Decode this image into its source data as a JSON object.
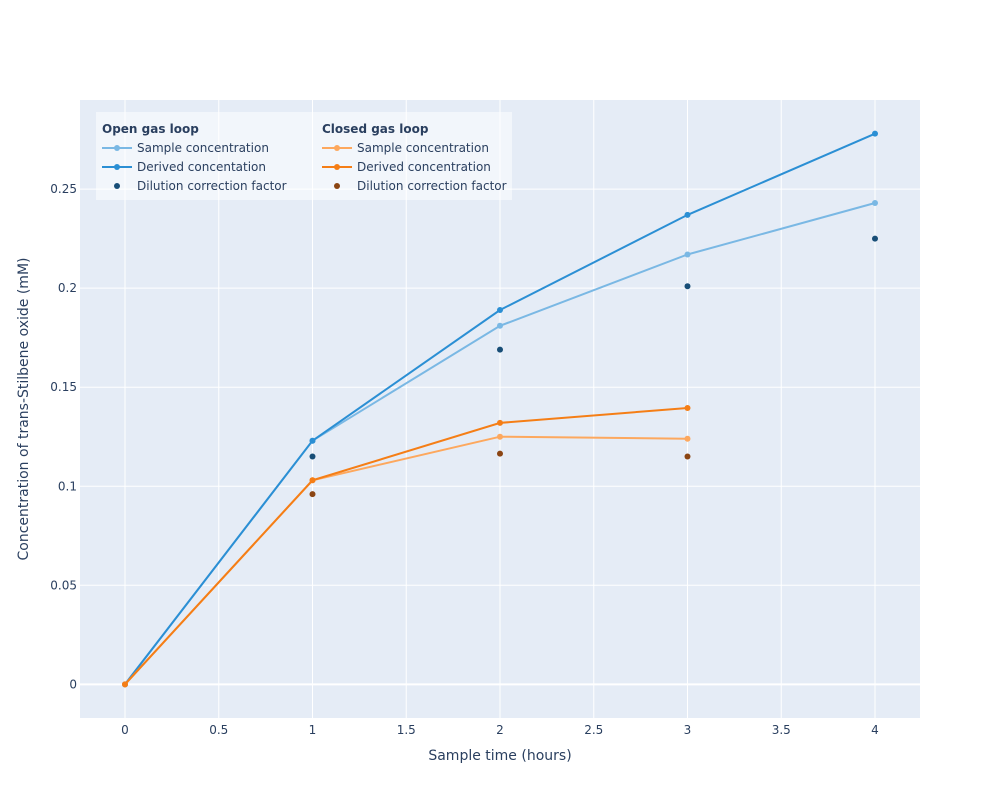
{
  "chart_data": {
    "type": "line",
    "xlabel": "Sample time (hours)",
    "ylabel": "Concentration of trans-Stilbene oxide (mM)",
    "xlim": [
      -0.24,
      4.24
    ],
    "ylim": [
      -0.017,
      0.295
    ],
    "x_ticks": [
      0,
      0.5,
      1,
      1.5,
      2,
      2.5,
      3,
      3.5,
      4
    ],
    "x_tick_labels": [
      "0",
      "0.5",
      "1",
      "1.5",
      "2",
      "2.5",
      "3",
      "3.5",
      "4"
    ],
    "y_ticks": [
      0,
      0.05,
      0.1,
      0.15,
      0.2,
      0.25
    ],
    "y_tick_labels": [
      "0",
      "0.05",
      "0.1",
      "0.15",
      "0.2",
      "0.25"
    ],
    "grid": true,
    "legend_position": "top-left",
    "legend_groups": [
      {
        "title": "Open gas loop",
        "series": [
          {
            "name": "Sample concentration",
            "mode": "lines+markers",
            "color": "#7ab8e4",
            "x": [
              0,
              1,
              2,
              3,
              4
            ],
            "y": [
              0,
              0.123,
              0.181,
              0.217,
              0.243
            ]
          },
          {
            "name": "Derived concentation",
            "mode": "lines+markers",
            "color": "#2b8fd4",
            "x": [
              0,
              1,
              2,
              3,
              4
            ],
            "y": [
              0,
              0.123,
              0.189,
              0.237,
              0.278
            ]
          },
          {
            "name": "Dilution correction factor",
            "mode": "markers",
            "color": "#184e77",
            "x": [
              1,
              2,
              3,
              4
            ],
            "y": [
              0.115,
              0.169,
              0.201,
              0.225
            ]
          }
        ]
      },
      {
        "title": "Closed gas loop",
        "series": [
          {
            "name": "Sample concentration",
            "mode": "lines+markers",
            "color": "#fda85e",
            "x": [
              0,
              1,
              2,
              3
            ],
            "y": [
              0,
              0.103,
              0.125,
              0.124
            ]
          },
          {
            "name": "Derived concentration",
            "mode": "lines+markers",
            "color": "#f57e16",
            "x": [
              0,
              1,
              2,
              3
            ],
            "y": [
              0,
              0.103,
              0.132,
              0.1395
            ]
          },
          {
            "name": "Dilution correction factor",
            "mode": "markers",
            "color": "#8b4513",
            "x": [
              1,
              2,
              3
            ],
            "y": [
              0.096,
              0.1165,
              0.115
            ]
          }
        ]
      }
    ]
  }
}
